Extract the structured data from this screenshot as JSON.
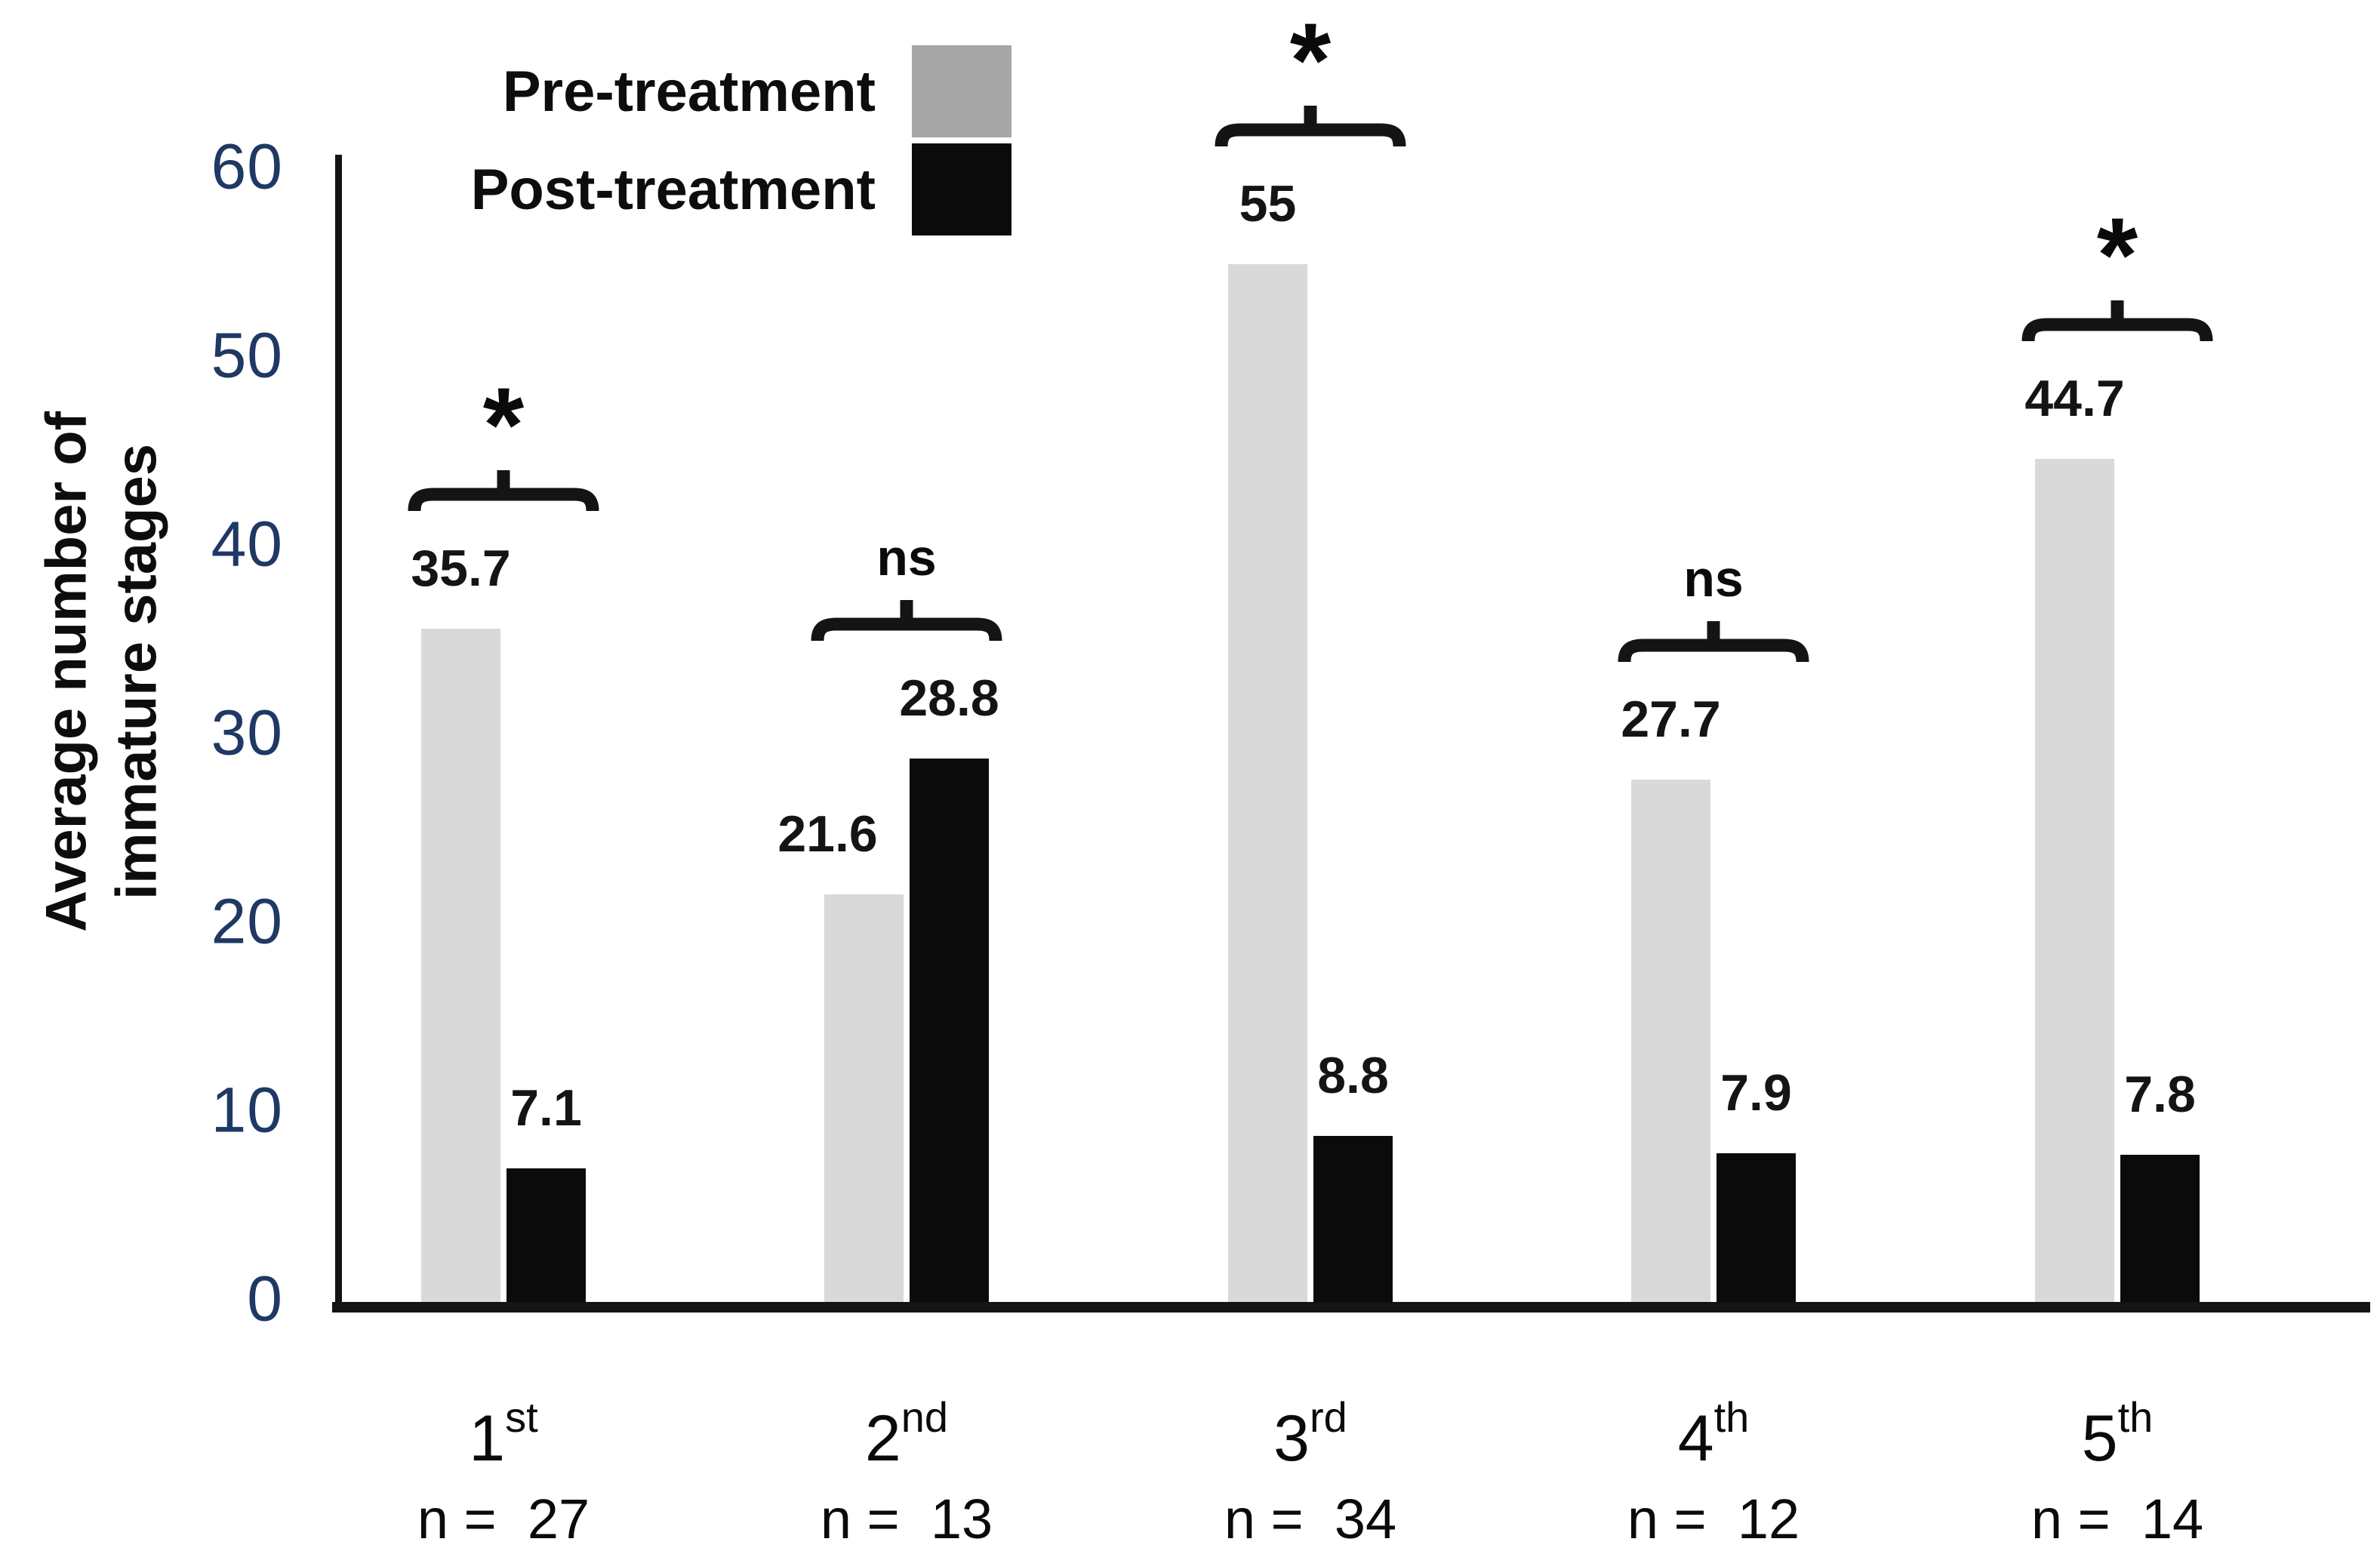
{
  "chart_data": {
    "type": "bar",
    "title": "",
    "ylabel_lines": [
      "Average number of",
      "immature stages"
    ],
    "xlabel": "",
    "ylim": [
      0,
      60
    ],
    "yticks": [
      0,
      10,
      20,
      30,
      40,
      50,
      60
    ],
    "grid": false,
    "legend_position": "top-left",
    "categories": [
      {
        "base": "1",
        "sup": "st",
        "sample": "n =  27"
      },
      {
        "base": "2",
        "sup": "nd",
        "sample": "n =  13"
      },
      {
        "base": "3",
        "sup": "rd",
        "sample": "n =  34"
      },
      {
        "base": "4",
        "sup": "th",
        "sample": "n =  12"
      },
      {
        "base": "5",
        "sup": "th",
        "sample": "n =  14"
      }
    ],
    "series": [
      {
        "name": "Pre-treatment",
        "bar_color": "#d9d9d9",
        "legend_color": "#a6a6a6",
        "values": [
          35.7,
          21.6,
          55,
          27.7,
          44.7
        ],
        "value_labels": [
          "35.7",
          "21.6",
          "55",
          "27.7",
          "44.7"
        ]
      },
      {
        "name": "Post-treatment",
        "bar_color": "#0b0b0b",
        "legend_color": "#0b0b0b",
        "values": [
          7.1,
          28.8,
          8.8,
          7.9,
          7.8
        ],
        "value_labels": [
          "7.1",
          "28.8",
          "8.8",
          "7.9",
          "7.8"
        ]
      }
    ],
    "significance": [
      "*",
      "ns",
      "*",
      "ns",
      "*"
    ],
    "colors": {
      "tick_label": "#1f3864",
      "axis": "#141414",
      "text": "#0d0d0d"
    }
  }
}
